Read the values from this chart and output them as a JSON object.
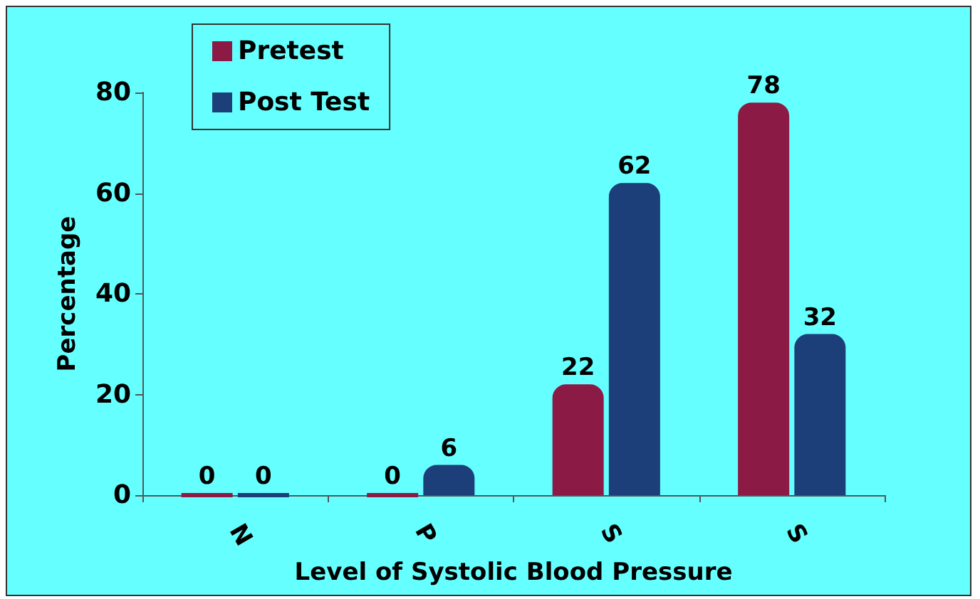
{
  "chart_data": {
    "type": "bar",
    "xlabel": "Level of Systolic Blood Pressure",
    "ylabel": "Percentage",
    "categories": [
      "N",
      "P",
      "S",
      "S"
    ],
    "series": [
      {
        "name": "Pretest",
        "color": "#8b1a44",
        "values": [
          0,
          0,
          22,
          78
        ]
      },
      {
        "name": "Post Test",
        "color": "#1c3f7a",
        "values": [
          0,
          6,
          62,
          32
        ]
      }
    ],
    "ylim": [
      0,
      80
    ],
    "yticks": [
      0,
      20,
      40,
      60,
      80
    ],
    "grid": false,
    "legend": "top left",
    "data_labels": true
  }
}
